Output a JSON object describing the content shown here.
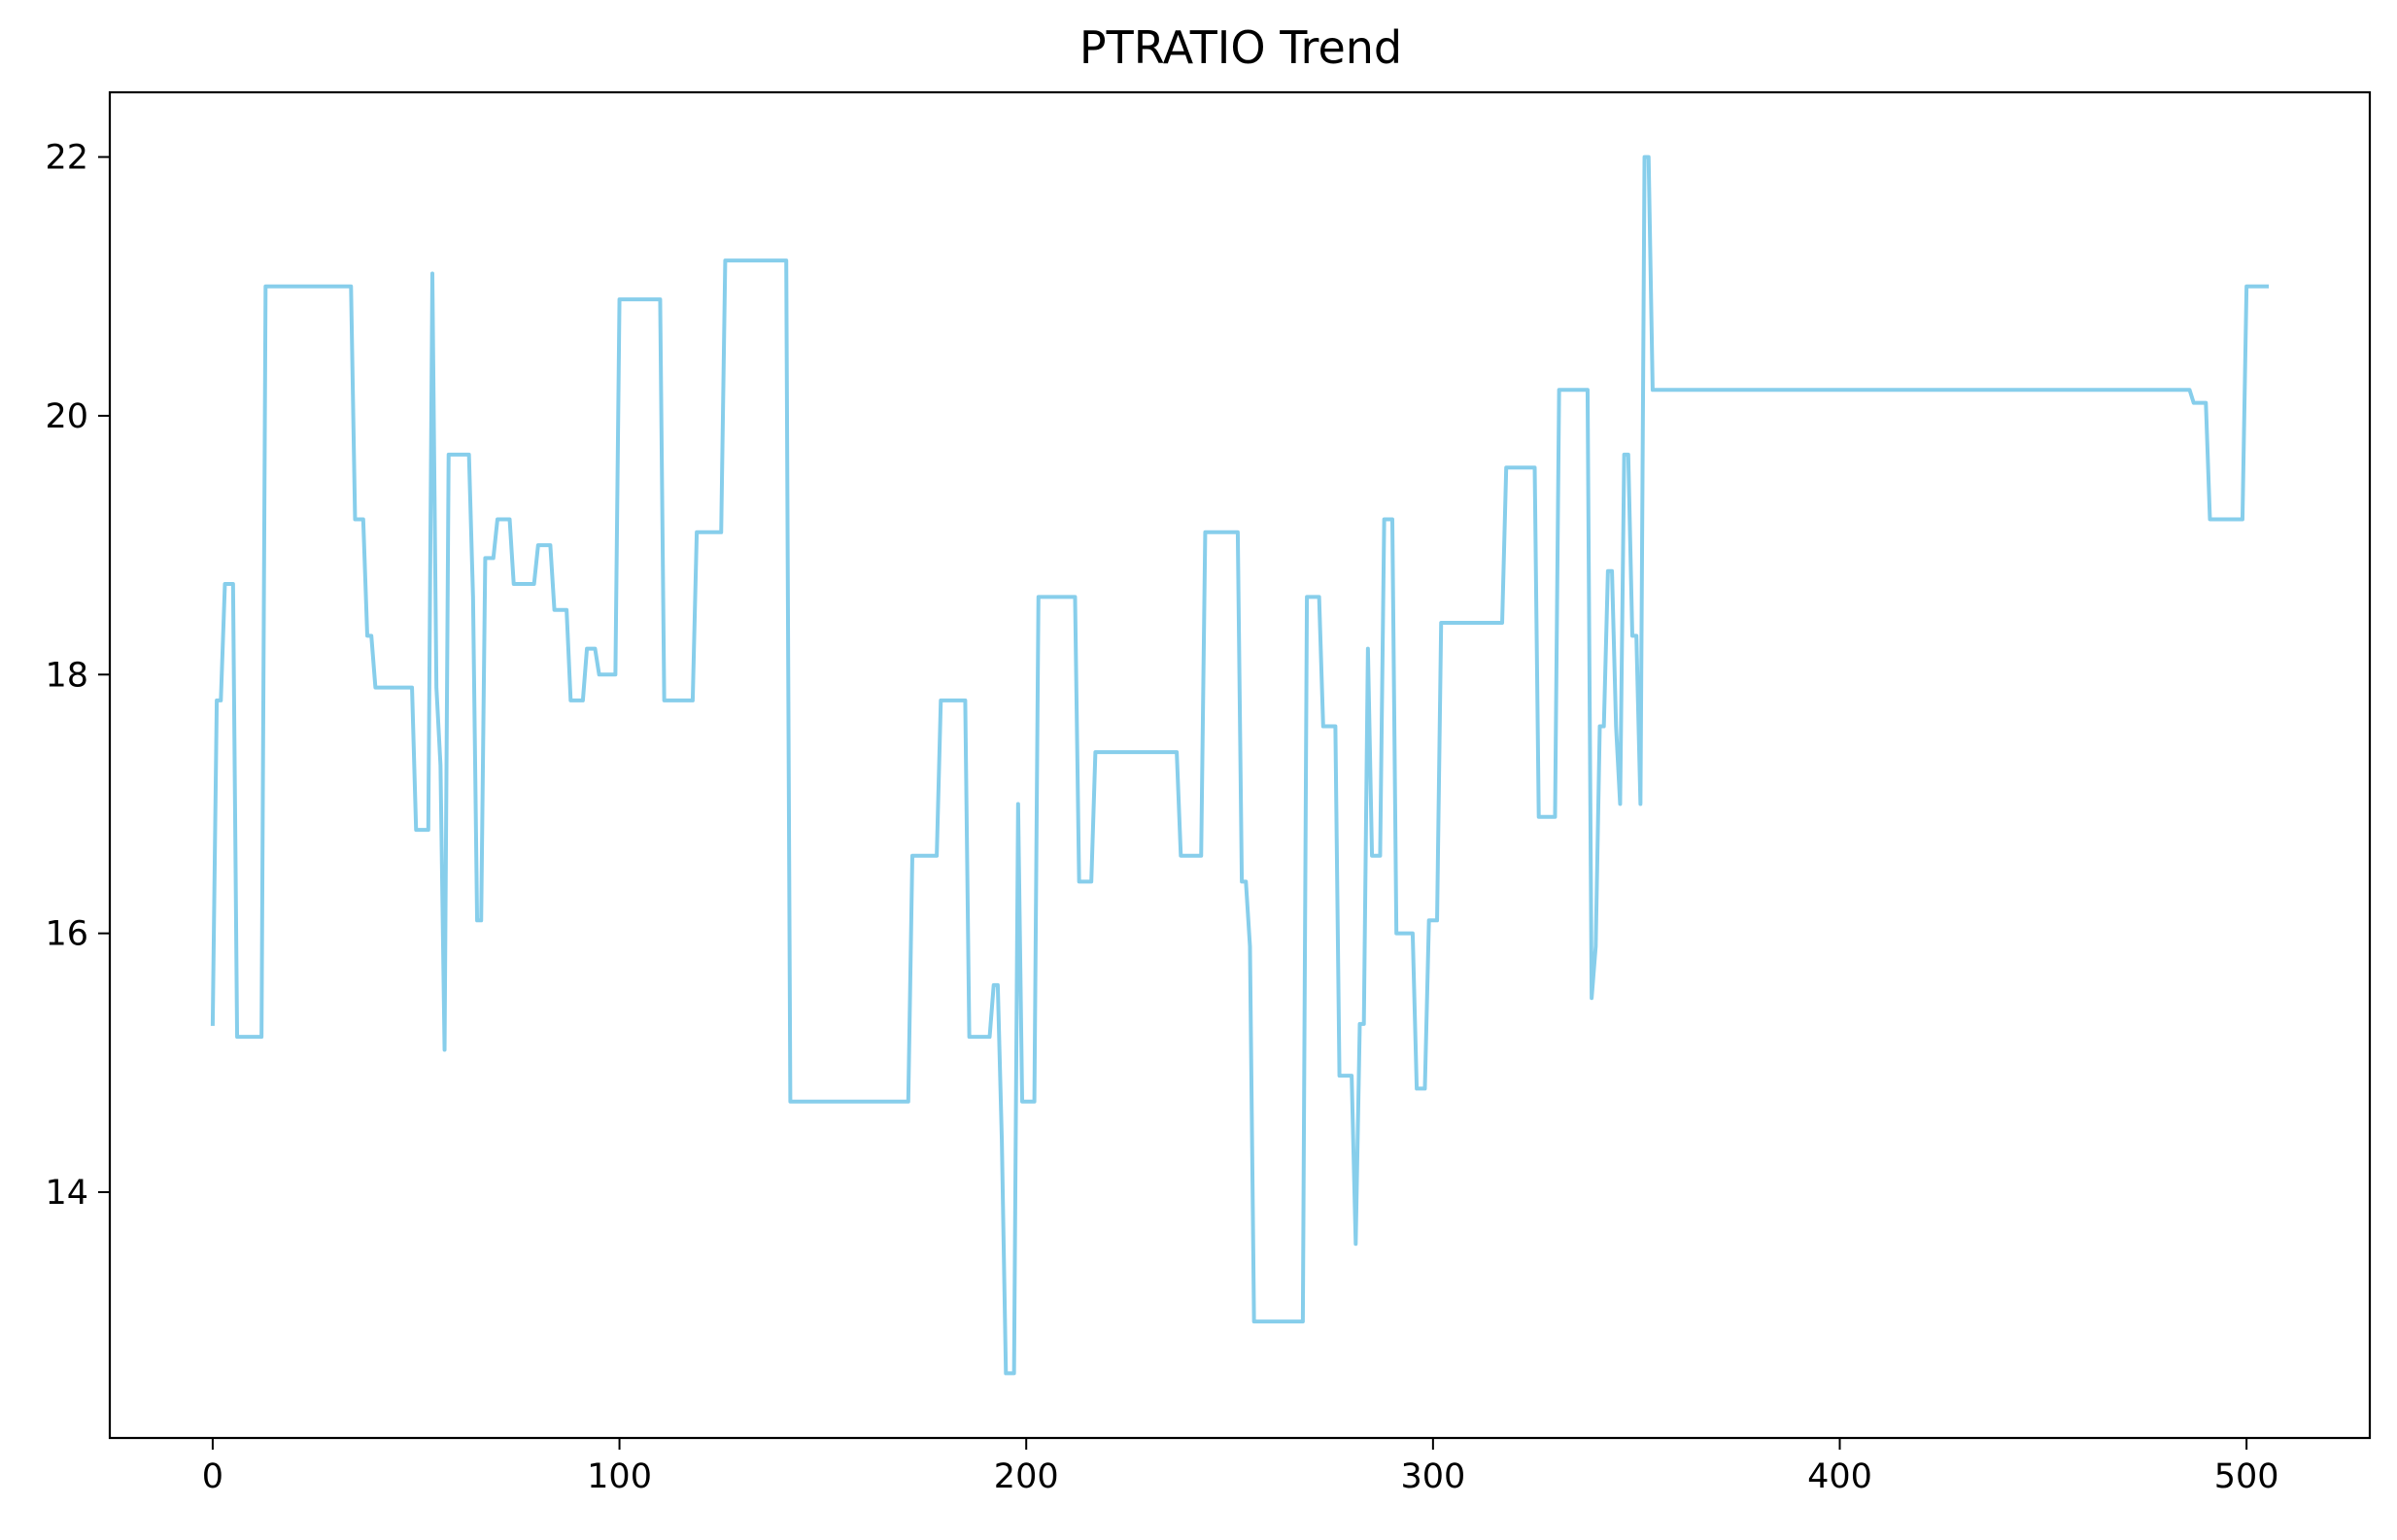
{
  "chart_data": {
    "type": "line",
    "title": "PTRATIO Trend",
    "xlabel": "",
    "ylabel": "",
    "xlim": [
      -25.3,
      530.3
    ],
    "ylim": [
      12.1,
      22.5
    ],
    "xticks": [
      0,
      100,
      200,
      300,
      400,
      500
    ],
    "yticks": [
      14,
      16,
      18,
      20,
      22
    ],
    "line_color": "#87ceeb",
    "grid": false,
    "legend": "none",
    "series": [
      {
        "points": [
          [
            0,
            15.3
          ],
          [
            1,
            17.8
          ],
          [
            2,
            17.8
          ],
          [
            3,
            18.7
          ],
          [
            4,
            18.7
          ],
          [
            5,
            18.7
          ],
          [
            6,
            15.2
          ],
          [
            7,
            15.2
          ],
          [
            8,
            15.2
          ],
          [
            9,
            15.2
          ],
          [
            10,
            15.2
          ],
          [
            11,
            15.2
          ],
          [
            12,
            15.2
          ],
          [
            13,
            21.0
          ],
          [
            14,
            21.0
          ],
          [
            20,
            21.0
          ],
          [
            25,
            21.0
          ],
          [
            30,
            21.0
          ],
          [
            34,
            21.0
          ],
          [
            35,
            19.2
          ],
          [
            36,
            19.2
          ],
          [
            37,
            19.2
          ],
          [
            38,
            18.3
          ],
          [
            39,
            18.3
          ],
          [
            40,
            17.9
          ],
          [
            45,
            17.9
          ],
          [
            49,
            17.9
          ],
          [
            50,
            16.8
          ],
          [
            51,
            16.8
          ],
          [
            52,
            16.8
          ],
          [
            53,
            16.8
          ],
          [
            54,
            21.1
          ],
          [
            55,
            17.9
          ],
          [
            56,
            17.3
          ],
          [
            57,
            15.1
          ],
          [
            58,
            19.7
          ],
          [
            59,
            19.7
          ],
          [
            60,
            19.7
          ],
          [
            61,
            19.7
          ],
          [
            62,
            19.7
          ],
          [
            63,
            19.7
          ],
          [
            64,
            18.6
          ],
          [
            65,
            16.1
          ],
          [
            66,
            16.1
          ],
          [
            67,
            18.9
          ],
          [
            68,
            18.9
          ],
          [
            69,
            18.9
          ],
          [
            70,
            19.2
          ],
          [
            71,
            19.2
          ],
          [
            72,
            19.2
          ],
          [
            73,
            19.2
          ],
          [
            74,
            18.7
          ],
          [
            75,
            18.7
          ],
          [
            76,
            18.7
          ],
          [
            77,
            18.7
          ],
          [
            78,
            18.7
          ],
          [
            79,
            18.7
          ],
          [
            80,
            19.0
          ],
          [
            81,
            19.0
          ],
          [
            82,
            19.0
          ],
          [
            83,
            19.0
          ],
          [
            84,
            18.5
          ],
          [
            85,
            18.5
          ],
          [
            86,
            18.5
          ],
          [
            87,
            18.5
          ],
          [
            88,
            17.8
          ],
          [
            89,
            17.8
          ],
          [
            90,
            17.8
          ],
          [
            91,
            17.8
          ],
          [
            92,
            18.2
          ],
          [
            93,
            18.2
          ],
          [
            94,
            18.2
          ],
          [
            95,
            18.0
          ],
          [
            96,
            18.0
          ],
          [
            97,
            18.0
          ],
          [
            98,
            18.0
          ],
          [
            99,
            18.0
          ],
          [
            100,
            20.9
          ],
          [
            105,
            20.9
          ],
          [
            110,
            20.9
          ],
          [
            111,
            17.8
          ],
          [
            115,
            17.8
          ],
          [
            118,
            17.8
          ],
          [
            119,
            19.1
          ],
          [
            122,
            19.1
          ],
          [
            125,
            19.1
          ],
          [
            126,
            21.2
          ],
          [
            130,
            21.2
          ],
          [
            135,
            21.2
          ],
          [
            141,
            21.2
          ],
          [
            142,
            14.7
          ],
          [
            150,
            14.7
          ],
          [
            160,
            14.7
          ],
          [
            171,
            14.7
          ],
          [
            172,
            16.6
          ],
          [
            175,
            16.6
          ],
          [
            178,
            16.6
          ],
          [
            179,
            17.8
          ],
          [
            182,
            17.8
          ],
          [
            185,
            17.8
          ],
          [
            186,
            15.2
          ],
          [
            190,
            15.2
          ],
          [
            191,
            15.2
          ],
          [
            192,
            15.6
          ],
          [
            193,
            15.6
          ],
          [
            194,
            14.4
          ],
          [
            195,
            12.6
          ],
          [
            196,
            12.6
          ],
          [
            197,
            12.6
          ],
          [
            198,
            17.0
          ],
          [
            199,
            14.7
          ],
          [
            200,
            14.7
          ],
          [
            201,
            14.7
          ],
          [
            202,
            14.7
          ],
          [
            203,
            18.6
          ],
          [
            207,
            18.6
          ],
          [
            212,
            18.6
          ],
          [
            213,
            16.4
          ],
          [
            214,
            16.4
          ],
          [
            215,
            16.4
          ],
          [
            216,
            16.4
          ],
          [
            217,
            17.4
          ],
          [
            225,
            17.4
          ],
          [
            237,
            17.4
          ],
          [
            238,
            16.6
          ],
          [
            240,
            16.6
          ],
          [
            243,
            16.6
          ],
          [
            244,
            19.1
          ],
          [
            248,
            19.1
          ],
          [
            252,
            19.1
          ],
          [
            253,
            16.4
          ],
          [
            254,
            16.4
          ],
          [
            255,
            15.9
          ],
          [
            256,
            13.0
          ],
          [
            260,
            13.0
          ],
          [
            268,
            13.0
          ],
          [
            269,
            18.6
          ],
          [
            270,
            18.6
          ],
          [
            272,
            18.6
          ],
          [
            273,
            17.6
          ],
          [
            276,
            17.6
          ],
          [
            277,
            14.9
          ],
          [
            278,
            14.9
          ],
          [
            279,
            14.9
          ],
          [
            280,
            14.9
          ],
          [
            281,
            13.6
          ],
          [
            282,
            15.3
          ],
          [
            283,
            15.3
          ],
          [
            284,
            18.2
          ],
          [
            285,
            16.6
          ],
          [
            286,
            16.6
          ],
          [
            287,
            16.6
          ],
          [
            288,
            19.2
          ],
          [
            289,
            19.2
          ],
          [
            290,
            19.2
          ],
          [
            291,
            16.0
          ],
          [
            292,
            16.0
          ],
          [
            293,
            16.0
          ],
          [
            294,
            16.0
          ],
          [
            295,
            16.0
          ],
          [
            296,
            14.8
          ],
          [
            297,
            14.8
          ],
          [
            298,
            14.8
          ],
          [
            299,
            16.1
          ],
          [
            300,
            16.1
          ],
          [
            301,
            16.1
          ],
          [
            302,
            18.4
          ],
          [
            310,
            18.4
          ],
          [
            317,
            18.4
          ],
          [
            318,
            19.6
          ],
          [
            322,
            19.6
          ],
          [
            325,
            19.6
          ],
          [
            326,
            16.9
          ],
          [
            328,
            16.9
          ],
          [
            330,
            16.9
          ],
          [
            331,
            20.2
          ],
          [
            335,
            20.2
          ],
          [
            338,
            20.2
          ],
          [
            339,
            15.5
          ],
          [
            340,
            15.9
          ],
          [
            341,
            17.6
          ],
          [
            342,
            17.6
          ],
          [
            343,
            18.8
          ],
          [
            344,
            18.8
          ],
          [
            345,
            17.6
          ],
          [
            346,
            17.0
          ],
          [
            347,
            19.7
          ],
          [
            348,
            19.7
          ],
          [
            349,
            18.3
          ],
          [
            350,
            18.3
          ],
          [
            351,
            17.0
          ],
          [
            352,
            22.0
          ],
          [
            353,
            22.0
          ],
          [
            354,
            20.2
          ],
          [
            360,
            20.2
          ],
          [
            400,
            20.2
          ],
          [
            450,
            20.2
          ],
          [
            486,
            20.2
          ],
          [
            487,
            20.1
          ],
          [
            488,
            20.1
          ],
          [
            490,
            20.1
          ],
          [
            491,
            19.2
          ],
          [
            495,
            19.2
          ],
          [
            499,
            19.2
          ],
          [
            500,
            21.0
          ],
          [
            503,
            21.0
          ],
          [
            505,
            21.0
          ]
        ]
      }
    ]
  }
}
